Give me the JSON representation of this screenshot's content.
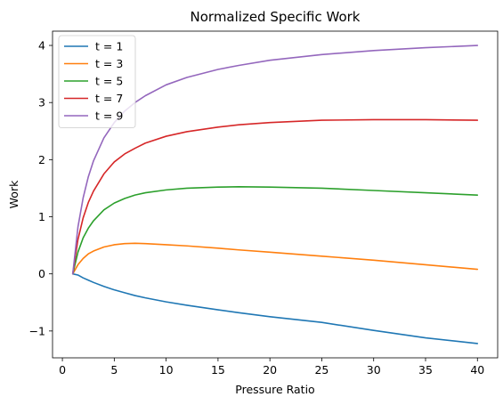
{
  "chart_data": {
    "type": "line",
    "title": "Normalized Specific Work",
    "xlabel": "Pressure Ratio",
    "ylabel": "Work",
    "xlim": [
      -0.95,
      41.95
    ],
    "ylim": [
      -1.47,
      4.25
    ],
    "xticks": [
      0,
      5,
      10,
      15,
      20,
      25,
      30,
      35,
      40
    ],
    "xtick_labels": [
      "0",
      "5",
      "10",
      "15",
      "20",
      "25",
      "30",
      "35",
      "40"
    ],
    "yticks": [
      -1,
      0,
      1,
      2,
      3,
      4
    ],
    "ytick_labels": [
      "−1",
      "0",
      "1",
      "2",
      "3",
      "4"
    ],
    "grid": false,
    "legend_position": "upper-left",
    "x": [
      1,
      1.5,
      2,
      2.5,
      3,
      4,
      5,
      6,
      7,
      8,
      10,
      12,
      15,
      17,
      20,
      25,
      30,
      35,
      40
    ],
    "series": [
      {
        "name": "t = 1",
        "color": "#1f77b4",
        "values": [
          0,
          -0.02,
          -0.07,
          -0.11,
          -0.15,
          -0.22,
          -0.28,
          -0.33,
          -0.38,
          -0.42,
          -0.49,
          -0.55,
          -0.63,
          -0.68,
          -0.75,
          -0.85,
          -0.99,
          -1.12,
          -1.22
        ]
      },
      {
        "name": "t = 3",
        "color": "#ff7f0e",
        "values": [
          0,
          0.16,
          0.27,
          0.35,
          0.4,
          0.47,
          0.51,
          0.53,
          0.535,
          0.53,
          0.51,
          0.49,
          0.45,
          0.42,
          0.38,
          0.31,
          0.24,
          0.16,
          0.08
        ]
      },
      {
        "name": "t = 5",
        "color": "#2ca02c",
        "values": [
          0,
          0.38,
          0.63,
          0.8,
          0.93,
          1.12,
          1.24,
          1.32,
          1.38,
          1.42,
          1.47,
          1.5,
          1.52,
          1.525,
          1.52,
          1.5,
          1.46,
          1.42,
          1.38
        ]
      },
      {
        "name": "t = 7",
        "color": "#d62728",
        "values": [
          0,
          0.6,
          0.98,
          1.25,
          1.45,
          1.75,
          1.96,
          2.1,
          2.2,
          2.29,
          2.41,
          2.49,
          2.57,
          2.61,
          2.65,
          2.69,
          2.7,
          2.7,
          2.69
        ]
      },
      {
        "name": "t = 9",
        "color": "#9467bd",
        "values": [
          0,
          0.82,
          1.33,
          1.7,
          1.98,
          2.38,
          2.65,
          2.85,
          3.0,
          3.12,
          3.31,
          3.44,
          3.58,
          3.65,
          3.74,
          3.84,
          3.91,
          3.96,
          4.0
        ]
      }
    ]
  }
}
